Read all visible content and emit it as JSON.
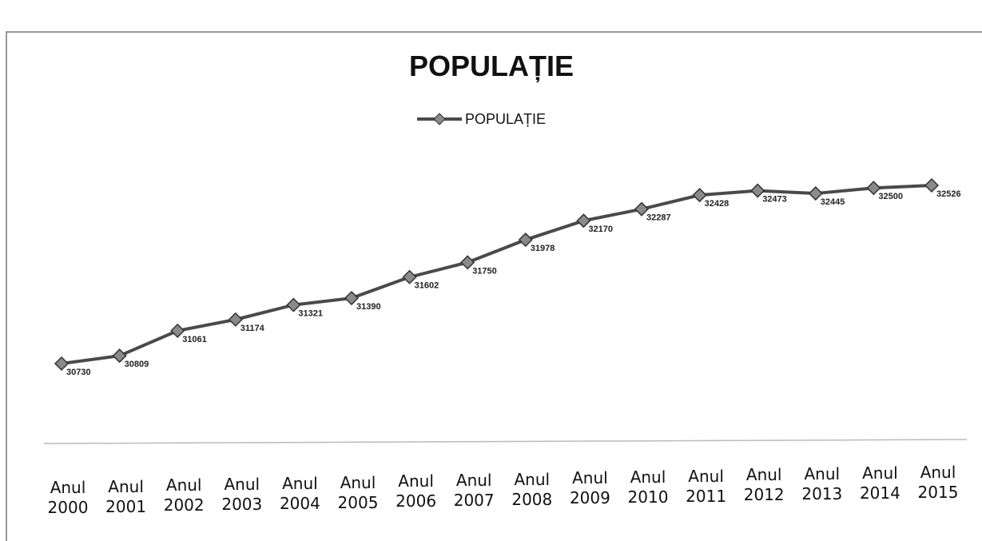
{
  "chart_data": {
    "type": "line",
    "title": "POPULAȚIE",
    "categories": [
      "Anul 2000",
      "Anul 2001",
      "Anul 2002",
      "Anul 2003",
      "Anul 2004",
      "Anul 2005",
      "Anul 2006",
      "Anul 2007",
      "Anul 2008",
      "Anul 2009",
      "Anul 2010",
      "Anul 2011",
      "Anul 2012",
      "Anul 2013",
      "Anul 2014",
      "Anul 2015"
    ],
    "series": [
      {
        "name": "POPULAȚIE",
        "color": "#4a4a4a",
        "values": [
          30730,
          30809,
          31061,
          31174,
          31321,
          31390,
          31602,
          31750,
          31978,
          32170,
          32287,
          32428,
          32473,
          32445,
          32500,
          32526
        ]
      }
    ],
    "legend": "top"
  }
}
